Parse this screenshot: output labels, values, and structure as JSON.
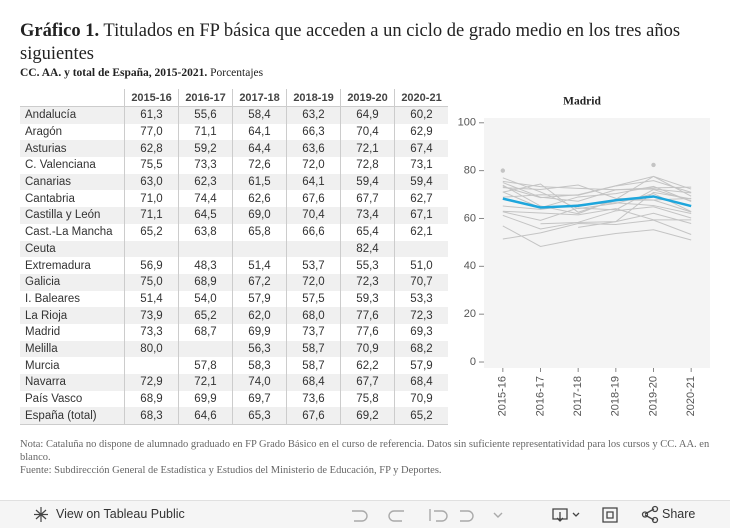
{
  "header": {
    "title_label": "Gráfico 1.",
    "title": "Titulados en FP básica que acceden a un ciclo de grado medio en los tres años siguientes",
    "subtitle_label": "CC. AA. y total de España, 2015-2021.",
    "subtitle": "Porcentajes"
  },
  "table": {
    "columns": [
      "2015-16",
      "2016-17",
      "2017-18",
      "2018-19",
      "2019-20",
      "2020-21"
    ],
    "rows": [
      [
        "Andalucía",
        "61,3",
        "55,6",
        "58,4",
        "63,2",
        "64,9",
        "60,2"
      ],
      [
        "Aragón",
        "77,0",
        "71,1",
        "64,1",
        "66,3",
        "70,4",
        "62,9"
      ],
      [
        "Asturias",
        "62,8",
        "59,2",
        "64,4",
        "63,6",
        "72,1",
        "67,4"
      ],
      [
        "C. Valenciana",
        "75,5",
        "73,3",
        "72,6",
        "72,0",
        "72,8",
        "73,1"
      ],
      [
        "Canarias",
        "63,0",
        "62,3",
        "61,5",
        "64,1",
        "59,4",
        "59,4"
      ],
      [
        "Cantabria",
        "71,0",
        "74,4",
        "62,6",
        "67,6",
        "67,7",
        "62,7"
      ],
      [
        "Castilla y León",
        "71,1",
        "64,5",
        "69,0",
        "70,4",
        "73,4",
        "67,1"
      ],
      [
        "Cast.-La Mancha",
        "65,2",
        "63,8",
        "65,8",
        "66,6",
        "65,4",
        "62,1"
      ],
      [
        "Ceuta",
        null,
        null,
        null,
        null,
        "82,4",
        null
      ],
      [
        "Extremadura",
        "56,9",
        "48,3",
        "51,4",
        "53,7",
        "55,3",
        "51,0"
      ],
      [
        "Galicia",
        "75,0",
        "68,9",
        "67,2",
        "72,0",
        "72,3",
        "70,7"
      ],
      [
        "I. Baleares",
        "51,4",
        "54,0",
        "57,9",
        "57,5",
        "59,3",
        "53,3"
      ],
      [
        "La Rioja",
        "73,9",
        "65,2",
        "62,0",
        "68,0",
        "77,6",
        "72,3"
      ],
      [
        "Madrid",
        "73,3",
        "68,7",
        "69,9",
        "73,7",
        "77,6",
        "69,3"
      ],
      [
        "Melilla",
        "80,0",
        null,
        "56,3",
        "58,7",
        "70,9",
        "68,2"
      ],
      [
        "Murcia",
        null,
        "57,8",
        "58,3",
        "58,7",
        "62,2",
        "57,9"
      ],
      [
        "Navarra",
        "72,9",
        "72,1",
        "74,0",
        "68,4",
        "67,7",
        "68,4"
      ],
      [
        "País Vasco",
        "68,9",
        "69,9",
        "69,7",
        "73,6",
        "75,8",
        "70,9"
      ],
      [
        "España (total)",
        "68,3",
        "64,6",
        "65,3",
        "67,6",
        "69,2",
        "65,2"
      ]
    ]
  },
  "chart_data": {
    "type": "line",
    "title": "Madrid",
    "categories": [
      "2015-16",
      "2016-17",
      "2017-18",
      "2018-19",
      "2019-20",
      "2020-21"
    ],
    "ylim": [
      -2.5,
      102
    ],
    "yticks": [
      0,
      20,
      40,
      60,
      80,
      100
    ],
    "grid": false,
    "series": [
      {
        "color": "#c4c4c4",
        "values": [
          61.3,
          55.6,
          58.4,
          63.2,
          64.9,
          60.2
        ]
      },
      {
        "color": "#c4c4c4",
        "values": [
          77.0,
          71.1,
          64.1,
          66.3,
          70.4,
          62.9
        ]
      },
      {
        "color": "#c4c4c4",
        "values": [
          62.8,
          59.2,
          64.4,
          63.6,
          72.1,
          67.4
        ]
      },
      {
        "color": "#c4c4c4",
        "values": [
          75.5,
          73.3,
          72.6,
          72.0,
          72.8,
          73.1
        ]
      },
      {
        "color": "#c4c4c4",
        "values": [
          63.0,
          62.3,
          61.5,
          64.1,
          59.4,
          59.4
        ]
      },
      {
        "color": "#c4c4c4",
        "values": [
          71.0,
          74.4,
          62.6,
          67.6,
          67.7,
          62.7
        ]
      },
      {
        "color": "#c4c4c4",
        "values": [
          71.1,
          64.5,
          69.0,
          70.4,
          73.4,
          67.1
        ]
      },
      {
        "color": "#c4c4c4",
        "values": [
          65.2,
          63.8,
          65.8,
          66.6,
          65.4,
          62.1
        ]
      },
      {
        "color": "#c4c4c4",
        "values": [
          null,
          null,
          null,
          null,
          82.4,
          null
        ]
      },
      {
        "color": "#c4c4c4",
        "values": [
          56.9,
          48.3,
          51.4,
          53.7,
          55.3,
          51.0
        ]
      },
      {
        "color": "#c4c4c4",
        "values": [
          75.0,
          68.9,
          67.2,
          72.0,
          72.3,
          70.7
        ]
      },
      {
        "color": "#c4c4c4",
        "values": [
          51.4,
          54.0,
          57.9,
          57.5,
          59.3,
          53.3
        ]
      },
      {
        "color": "#c4c4c4",
        "values": [
          73.9,
          65.2,
          62.0,
          68.0,
          77.6,
          72.3
        ]
      },
      {
        "color": "#c4c4c4",
        "values": [
          73.3,
          68.7,
          69.9,
          73.7,
          77.6,
          69.3
        ]
      },
      {
        "color": "#c4c4c4",
        "values": [
          80.0,
          null,
          56.3,
          58.7,
          70.9,
          68.2
        ]
      },
      {
        "color": "#c4c4c4",
        "values": [
          null,
          57.8,
          58.3,
          58.7,
          62.2,
          57.9
        ]
      },
      {
        "color": "#c4c4c4",
        "values": [
          72.9,
          72.1,
          74.0,
          68.4,
          67.7,
          68.4
        ]
      },
      {
        "color": "#c4c4c4",
        "values": [
          68.9,
          69.9,
          69.7,
          73.6,
          75.8,
          70.9
        ]
      },
      {
        "color": "#1ea6dc",
        "values": [
          68.3,
          64.6,
          65.3,
          67.6,
          69.2,
          65.2
        ]
      }
    ]
  },
  "notes": {
    "note": "Nota: Cataluña no dispone de alumnado graduado en FP Grado Básico en el curso de referencia. Datos sin suficiente representatividad para los cursos y CC. AA. en blanco.",
    "source": "Fuente: Subdirección General de Estadística y Estudios del Ministerio de Educación, FP y Deportes."
  },
  "toolbar": {
    "view": "View on Tableau Public",
    "share": "Share"
  }
}
